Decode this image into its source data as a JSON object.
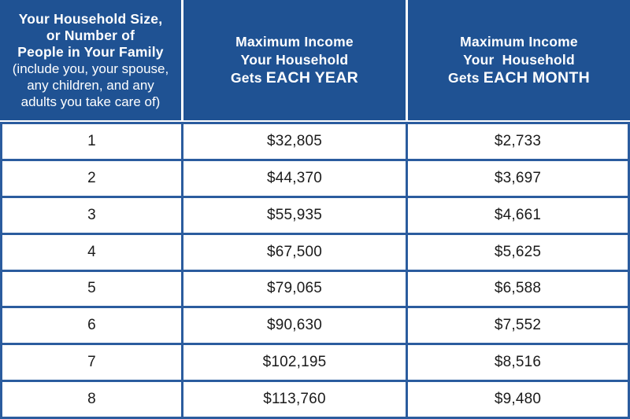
{
  "colors": {
    "header_bg": "#1F5293",
    "grid_line": "#2B5C9E",
    "divider_white": "#FFFFFF",
    "cell_bg": "#FFFFFF",
    "data_text": "#1B1B1B",
    "header_text": "#FFFFFF"
  },
  "header": {
    "household": {
      "title_lines": [
        "Your Household Size,",
        "or Number of",
        "People in Your Family"
      ],
      "subtitle_lines": [
        "(include you, your spouse,",
        "any children, and any",
        "adults you take care of)"
      ]
    },
    "yearly": {
      "line1": "Maximum Income",
      "line2": "Your Household",
      "line3_prefix": "Gets ",
      "line3_emphasis": "EACH YEAR"
    },
    "monthly": {
      "line1": "Maximum Income",
      "line2": "Your  Household",
      "line3_prefix": "Gets ",
      "line3_emphasis": "EACH MONTH"
    }
  },
  "rows": [
    {
      "size": "1",
      "year": "$32,805",
      "month": "$2,733"
    },
    {
      "size": "2",
      "year": "$44,370",
      "month": "$3,697"
    },
    {
      "size": "3",
      "year": "$55,935",
      "month": "$4,661"
    },
    {
      "size": "4",
      "year": "$67,500",
      "month": "$5,625"
    },
    {
      "size": "5",
      "year": "$79,065",
      "month": "$6,588"
    },
    {
      "size": "6",
      "year": "$90,630",
      "month": "$7,552"
    },
    {
      "size": "7",
      "year": "$102,195",
      "month": "$8,516"
    },
    {
      "size": "8",
      "year": "$113,760",
      "month": "$9,480"
    }
  ],
  "chart_data": {
    "type": "table",
    "columns": [
      "Your Household Size, or Number of People in Your Family (include you, your spouse, any children, and any adults you take care of)",
      "Maximum Income Your Household Gets EACH YEAR",
      "Maximum Income Your Household Gets EACH MONTH"
    ],
    "rows": [
      [
        1,
        "$32,805",
        "$2,733"
      ],
      [
        2,
        "$44,370",
        "$3,697"
      ],
      [
        3,
        "$55,935",
        "$4,661"
      ],
      [
        4,
        "$67,500",
        "$5,625"
      ],
      [
        5,
        "$79,065",
        "$6,588"
      ],
      [
        6,
        "$90,630",
        "$7,552"
      ],
      [
        7,
        "$102,195",
        "$8,516"
      ],
      [
        8,
        "$113,760",
        "$9,480"
      ]
    ]
  }
}
